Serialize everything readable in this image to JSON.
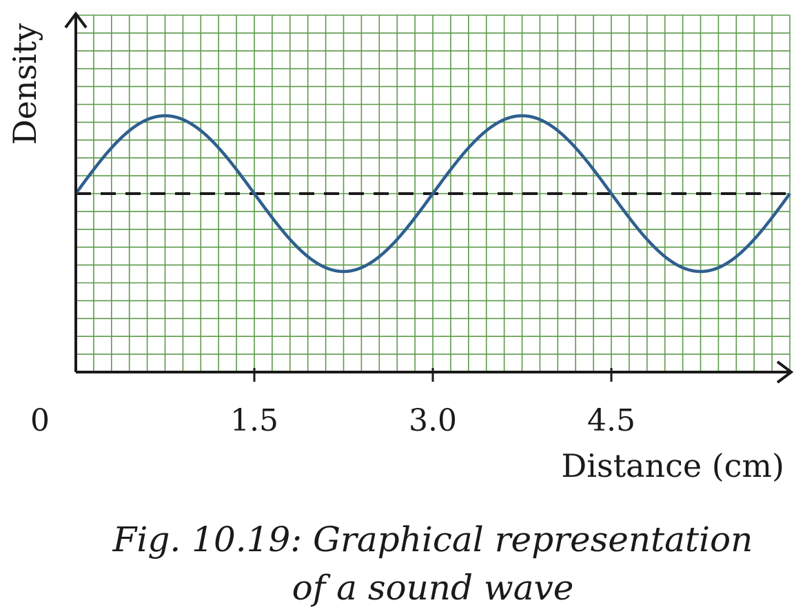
{
  "chart_data": {
    "type": "line",
    "xlabel": "Distance (cm)",
    "ylabel": "Density",
    "x_ticks": [
      "0",
      "1.5",
      "3.0",
      "4.5"
    ],
    "x_tick_values": [
      0,
      1.5,
      3.0,
      4.5
    ],
    "xlim": [
      0,
      6.0
    ],
    "grid": true,
    "series": [
      {
        "x": [
          0,
          0.375,
          0.75,
          1.125,
          1.5,
          1.875,
          2.25,
          2.625,
          3.0,
          3.375,
          3.75,
          4.125,
          4.5,
          4.875,
          5.25,
          5.625,
          6.0
        ],
        "y": [
          0,
          0.71,
          1,
          0.71,
          0,
          -0.71,
          -1,
          -0.71,
          0,
          0.71,
          1,
          0.71,
          0,
          -0.71,
          -1,
          -0.71,
          0
        ]
      }
    ],
    "reference_line": {
      "y": 0,
      "style": "dashed"
    },
    "colors": {
      "wave": "#2f5f8f",
      "grid": "#5c9a49",
      "axes": "#1a1a1a",
      "reference": "#1a1a1a"
    }
  },
  "caption": {
    "line1": "Fig. 10.19: Graphical representation",
    "line2": "of a sound wave"
  }
}
